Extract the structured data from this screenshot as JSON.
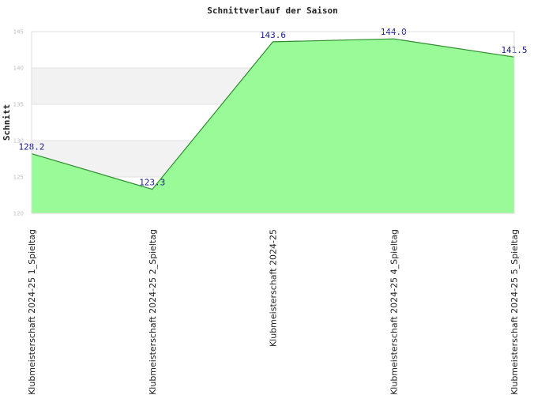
{
  "chart_data": {
    "type": "area",
    "title": "Schnittverlauf der Saison",
    "xlabel": "",
    "ylabel": "Schnitt",
    "categories": [
      "Klubmeisterschaft 2024-25   1_Spieltag",
      "Klubmeisterschaft 2024-25   2_Spieltag",
      "Klubmeisterschaft 2024-25",
      "Klubmeisterschaft 2024-25   4_Spieltag",
      "Klubmeisterschaft 2024-25   5_Spieltag"
    ],
    "values": [
      128.2,
      123.3,
      143.6,
      144.0,
      141.5
    ],
    "data_labels": [
      "128.2",
      "123.3",
      "143.6",
      "144.0",
      "141.5"
    ],
    "ylim": [
      120,
      145
    ],
    "yticks": [
      120,
      125,
      130,
      135,
      140,
      145
    ],
    "grid": true,
    "legend": "none",
    "colors": {
      "fill": "#98fb98",
      "line": "#2e8b2e",
      "band": "#f2f2f2",
      "label": "#1a1a8c"
    }
  }
}
